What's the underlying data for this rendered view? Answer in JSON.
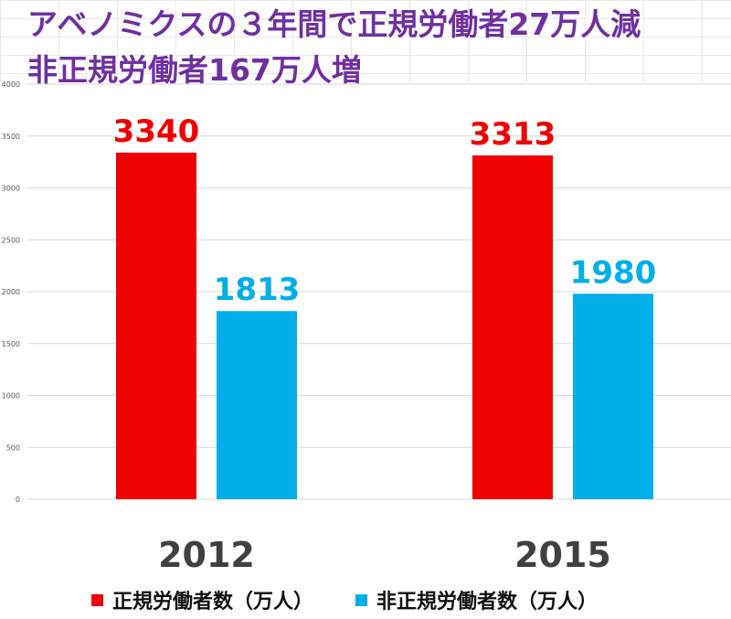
{
  "title": {
    "line1": "アベノミクスの３年間で正規労働者27万人減",
    "line2": "非正規労働者167万人増"
  },
  "chart_data": {
    "type": "bar",
    "categories": [
      "2012",
      "2015"
    ],
    "series": [
      {
        "name": "正規労働者数（万人）",
        "values": [
          3340,
          3313
        ],
        "color": "#ee0000"
      },
      {
        "name": "非正規労働者数（万人）",
        "values": [
          1813,
          1980
        ],
        "color": "#00aee8"
      }
    ],
    "ylim": [
      0,
      4000
    ],
    "yticks": [
      0,
      500,
      1000,
      1500,
      2000,
      2500,
      3000,
      3500,
      4000
    ],
    "grid": true,
    "legend_position": "bottom",
    "data_labels": true
  }
}
